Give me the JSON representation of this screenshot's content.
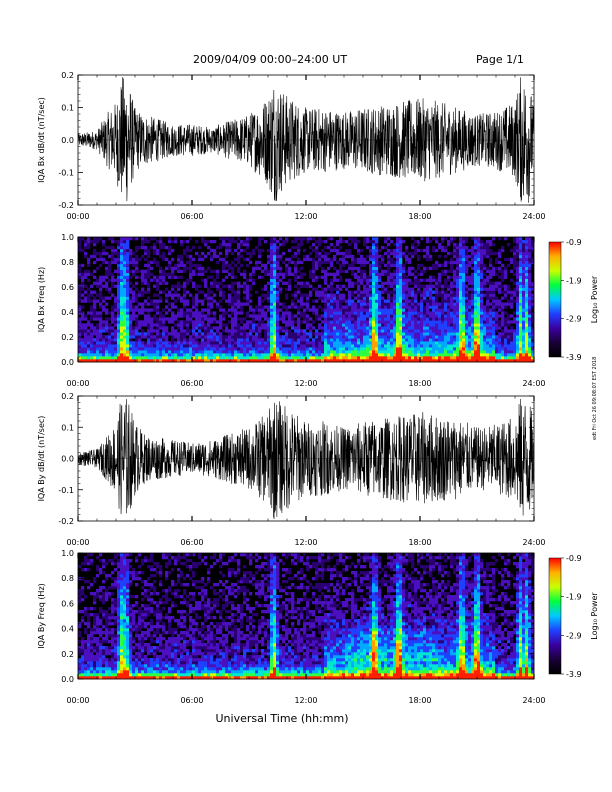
{
  "header": {
    "title": "2009/04/09  00:00–24:00 UT",
    "page": "Page 1/1"
  },
  "footer": {
    "xlabel": "Universal Time (hh:mm)"
  },
  "stamp": "edt Fri Oct 26 09:08:07 EST 2018",
  "colors": {
    "trace": "#000000",
    "spectrogram_scale": [
      "#000000",
      "#1a0038",
      "#3a00a0",
      "#2040ff",
      "#00c8ff",
      "#00ff40",
      "#c8ff00",
      "#ffb000",
      "#ff0000"
    ]
  },
  "chart_data": [
    {
      "type": "line",
      "panel": "bx-waveform",
      "title": "",
      "xlabel": "",
      "ylabel": "IQA Bx dB/dt (nT/sec)",
      "xlim": [
        0,
        24
      ],
      "ylim": [
        -0.2,
        0.2
      ],
      "x_tick_labels": [
        "00:00",
        "06:00",
        "12:00",
        "18:00",
        "24:00"
      ],
      "y_tick_labels": [
        "0.2",
        "0.1",
        "0.0",
        "-0.1",
        "-0.2"
      ],
      "series": [
        {
          "x": [
            0,
            1,
            1.5,
            2,
            2.3,
            2.6,
            3,
            3.5,
            4,
            5,
            6,
            7,
            8,
            9,
            10,
            10.3,
            11,
            12,
            13,
            14,
            15,
            16,
            17,
            18,
            19,
            20,
            21,
            22,
            23,
            23.3,
            23.7,
            24
          ],
          "values": [
            0.02,
            0.03,
            0.08,
            0.12,
            0.2,
            0.2,
            0.1,
            0.08,
            0.07,
            0.05,
            0.05,
            0.04,
            0.06,
            0.08,
            0.14,
            0.2,
            0.14,
            0.1,
            0.1,
            0.09,
            0.1,
            0.11,
            0.12,
            0.13,
            0.12,
            0.1,
            0.08,
            0.09,
            0.12,
            0.2,
            0.2,
            0.1
          ]
        }
      ]
    },
    {
      "type": "heatmap",
      "panel": "bx-spectrogram",
      "title": "",
      "xlabel": "",
      "ylabel": "IQA Bx Freq (Hz)",
      "xlim": [
        0,
        24
      ],
      "ylim": [
        0,
        1.0
      ],
      "x_tick_labels": [
        "00:00",
        "06:00",
        "12:00",
        "18:00",
        "24:00"
      ],
      "y_tick_labels": [
        "1.0",
        "0.8",
        "0.6",
        "0.4",
        "0.2",
        "0.0"
      ],
      "colorbar": {
        "label": "Log₁₀ Power",
        "range": [
          -3.9,
          -0.9
        ],
        "tick_labels": [
          "-0.9",
          "-1.9",
          "-2.9",
          "-3.9"
        ]
      }
    },
    {
      "type": "line",
      "panel": "by-waveform",
      "title": "",
      "xlabel": "",
      "ylabel": "IQA By dB/dt (nT/sec)",
      "xlim": [
        0,
        24
      ],
      "ylim": [
        -0.2,
        0.2
      ],
      "x_tick_labels": [
        "00:00",
        "06:00",
        "12:00",
        "18:00",
        "24:00"
      ],
      "y_tick_labels": [
        "0.2",
        "0.1",
        "0.0",
        "-0.1",
        "-0.2"
      ],
      "series": [
        {
          "x": [
            0,
            1,
            1.5,
            2,
            2.3,
            2.6,
            3,
            3.5,
            4,
            5,
            6,
            7,
            8,
            9,
            10,
            10.3,
            11,
            12,
            13,
            14,
            15,
            16,
            17,
            18,
            19,
            20,
            21,
            22,
            23,
            23.3,
            23.7,
            24
          ],
          "values": [
            0.02,
            0.03,
            0.07,
            0.12,
            0.2,
            0.2,
            0.12,
            0.08,
            0.07,
            0.06,
            0.05,
            0.06,
            0.08,
            0.1,
            0.15,
            0.2,
            0.17,
            0.12,
            0.12,
            0.1,
            0.12,
            0.13,
            0.14,
            0.15,
            0.14,
            0.13,
            0.1,
            0.11,
            0.14,
            0.2,
            0.2,
            0.12
          ]
        }
      ]
    },
    {
      "type": "heatmap",
      "panel": "by-spectrogram",
      "title": "",
      "xlabel": "Universal Time (hh:mm)",
      "ylabel": "IQA By Freq (Hz)",
      "xlim": [
        0,
        24
      ],
      "ylim": [
        0,
        1.0
      ],
      "x_tick_labels": [
        "00:00",
        "06:00",
        "12:00",
        "18:00",
        "24:00"
      ],
      "y_tick_labels": [
        "1.0",
        "0.8",
        "0.6",
        "0.4",
        "0.2",
        "0.0"
      ],
      "colorbar": {
        "label": "Log₁₀ Power",
        "range": [
          -3.9,
          -0.9
        ],
        "tick_labels": [
          "-0.9",
          "-1.9",
          "-2.9",
          "-3.9"
        ]
      }
    }
  ]
}
